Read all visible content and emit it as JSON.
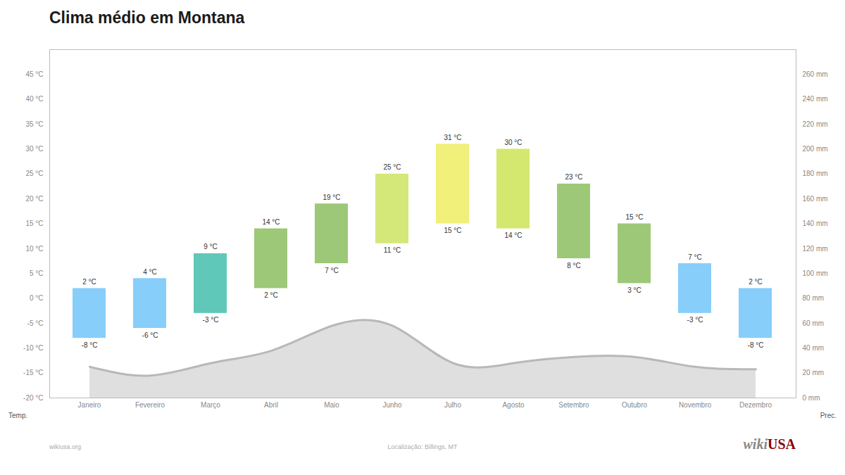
{
  "chart_data": {
    "type": "bar",
    "title": "Clima médio em Montana",
    "categories": [
      "Janeiro",
      "Fevereiro",
      "Março",
      "Abril",
      "Maio",
      "Junho",
      "Julho",
      "Agosto",
      "Setembro",
      "Outubro",
      "Novembro",
      "Dezembro"
    ],
    "ylabel": "Temp.",
    "y2label": "Prec.",
    "ylim": [
      -20,
      50
    ],
    "yticks": [
      {
        "value": -20,
        "label": "-20 °C"
      },
      {
        "value": -15,
        "label": "-15 °C"
      },
      {
        "value": -10,
        "label": "-10 °C"
      },
      {
        "value": -5,
        "label": "-5 °C"
      },
      {
        "value": 0,
        "label": "0 °C"
      },
      {
        "value": 5,
        "label": "5 °C"
      },
      {
        "value": 10,
        "label": "10 °C"
      },
      {
        "value": 15,
        "label": "15 °C"
      },
      {
        "value": 20,
        "label": "20 °C"
      },
      {
        "value": 25,
        "label": "25 °C"
      },
      {
        "value": 30,
        "label": "30 °C"
      },
      {
        "value": 35,
        "label": "35 °C"
      },
      {
        "value": 40,
        "label": "40 °C"
      },
      {
        "value": 45,
        "label": "45 °C"
      }
    ],
    "y2lim": [
      0,
      280
    ],
    "y2ticks": [
      {
        "value": 0,
        "label": "0 mm"
      },
      {
        "value": 20,
        "label": "20 mm"
      },
      {
        "value": 40,
        "label": "40 mm"
      },
      {
        "value": 60,
        "label": "60 mm"
      },
      {
        "value": 80,
        "label": "80 mm"
      },
      {
        "value": 100,
        "label": "100 mm"
      },
      {
        "value": 120,
        "label": "120 mm"
      },
      {
        "value": 140,
        "label": "140 mm"
      },
      {
        "value": 160,
        "label": "160 mm"
      },
      {
        "value": 180,
        "label": "180 mm"
      },
      {
        "value": 200,
        "label": "200 mm"
      },
      {
        "value": 220,
        "label": "220 mm"
      },
      {
        "value": 240,
        "label": "240 mm"
      },
      {
        "value": 260,
        "label": "260 mm"
      }
    ],
    "grid": false,
    "series": [
      {
        "type": "bar",
        "values": [
          2,
          4,
          9,
          14,
          19,
          25,
          31,
          30,
          23,
          15,
          7,
          2
        ],
        "value_labels": [
          "2 °C",
          "4 °C",
          "9 °C",
          "14 °C",
          "19 °C",
          "25 °C",
          "31 °C",
          "30 °C",
          "23 °C",
          "15 °C",
          "7 °C",
          "2 °C"
        ],
        "low": [
          -8,
          -6,
          -3,
          2,
          7,
          11,
          15,
          14,
          8,
          3,
          -3,
          -8
        ],
        "low_labels": [
          "-8 °C",
          "-6 °C",
          "-3 °C",
          "2 °C",
          "7 °C",
          "11 °C",
          "15 °C",
          "14 °C",
          "8 °C",
          "3 °C",
          "-3 °C",
          "-8 °C"
        ],
        "colors": [
          "#87CEFA",
          "#87CEFA",
          "#5FC8B8",
          "#9DC878",
          "#9DC878",
          "#D4E87A",
          "#F0F07A",
          "#D4E870",
          "#9DC878",
          "#9DC878",
          "#87CEFA",
          "#87CEFA"
        ],
        "data_labels": true
      },
      {
        "type": "area",
        "axis": "y2",
        "values": [
          25,
          18,
          28,
          38,
          58,
          58,
          28,
          28,
          33,
          33,
          25,
          23
        ],
        "color": "#b8b8b8"
      }
    ],
    "annotations": [
      {
        "text": "wikiusa.org"
      },
      {
        "text": "Localização: Billings, MT"
      },
      {
        "text": "wiki",
        "color": "#888888"
      },
      {
        "text": "USA",
        "color": "#8B0000"
      }
    ]
  }
}
